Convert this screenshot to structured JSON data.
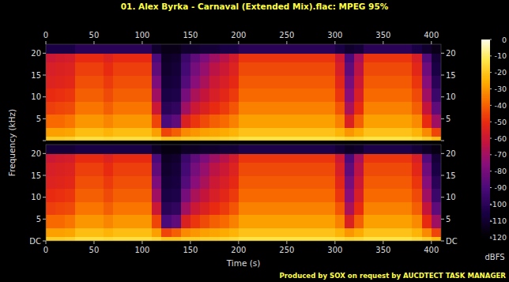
{
  "chart_data": {
    "type": "heatmap",
    "title": "01. Alex Byrka - Carnaval (Extended Mix).flac: MPEG 95%",
    "x_label": "Time (s)",
    "y_label": "Frequency (kHz)",
    "xlim": [
      0,
      410
    ],
    "xticks": [
      0,
      50,
      100,
      150,
      200,
      250,
      300,
      350,
      400
    ],
    "ylim": [
      0,
      22.05
    ],
    "yticks": [
      {
        "value": 0,
        "label": "DC"
      },
      5,
      10,
      15,
      20
    ],
    "x_bins": [
      0,
      10,
      20,
      30,
      40,
      50,
      60,
      70,
      80,
      90,
      100,
      110,
      120,
      130,
      140,
      150,
      160,
      170,
      180,
      190,
      200,
      210,
      220,
      230,
      240,
      250,
      260,
      270,
      280,
      290,
      300,
      310,
      320,
      330,
      340,
      350,
      360,
      370,
      380,
      390,
      400,
      410
    ],
    "y_bins": [
      0,
      1,
      3,
      6,
      9,
      12,
      15,
      18,
      20,
      22.05
    ],
    "channels": [
      {
        "cells": [
          [
            -18,
            -28,
            -38,
            -46,
            -50,
            -54,
            -56,
            -60,
            -105
          ],
          [
            -18,
            -28,
            -38,
            -45,
            -49,
            -53,
            -55,
            -58,
            -105
          ],
          [
            -17,
            -27,
            -36,
            -44,
            -48,
            -52,
            -54,
            -57,
            -105
          ],
          [
            -14,
            -22,
            -30,
            -36,
            -40,
            -43,
            -46,
            -50,
            -100
          ],
          [
            -14,
            -22,
            -30,
            -36,
            -40,
            -43,
            -46,
            -50,
            -100
          ],
          [
            -14,
            -22,
            -30,
            -36,
            -40,
            -43,
            -46,
            -50,
            -100
          ],
          [
            -15,
            -24,
            -33,
            -40,
            -44,
            -47,
            -50,
            -54,
            -100
          ],
          [
            -14,
            -22,
            -30,
            -36,
            -40,
            -43,
            -46,
            -50,
            -100
          ],
          [
            -14,
            -22,
            -30,
            -36,
            -40,
            -43,
            -46,
            -50,
            -100
          ],
          [
            -14,
            -22,
            -30,
            -36,
            -40,
            -43,
            -46,
            -50,
            -100
          ],
          [
            -14,
            -22,
            -30,
            -36,
            -40,
            -43,
            -46,
            -50,
            -100
          ],
          [
            -16,
            -28,
            -45,
            -60,
            -70,
            -78,
            -85,
            -90,
            -110
          ],
          [
            -20,
            -45,
            -90,
            -100,
            -105,
            -108,
            -110,
            -112,
            -115
          ],
          [
            -20,
            -40,
            -85,
            -98,
            -104,
            -106,
            -108,
            -110,
            -115
          ],
          [
            -18,
            -32,
            -55,
            -70,
            -80,
            -88,
            -92,
            -95,
            -110
          ],
          [
            -18,
            -30,
            -48,
            -60,
            -68,
            -75,
            -80,
            -85,
            -110
          ],
          [
            -17,
            -28,
            -44,
            -55,
            -62,
            -68,
            -72,
            -78,
            -108
          ],
          [
            -17,
            -27,
            -40,
            -50,
            -56,
            -60,
            -64,
            -70,
            -108
          ],
          [
            -16,
            -26,
            -38,
            -47,
            -52,
            -56,
            -60,
            -65,
            -105
          ],
          [
            -15,
            -24,
            -34,
            -42,
            -47,
            -51,
            -54,
            -58,
            -105
          ],
          [
            -13,
            -21,
            -28,
            -34,
            -38,
            -41,
            -44,
            -48,
            -100
          ],
          [
            -13,
            -21,
            -28,
            -34,
            -38,
            -41,
            -44,
            -48,
            -100
          ],
          [
            -13,
            -21,
            -28,
            -34,
            -38,
            -41,
            -44,
            -48,
            -100
          ],
          [
            -13,
            -21,
            -28,
            -34,
            -38,
            -41,
            -44,
            -48,
            -100
          ],
          [
            -13,
            -21,
            -28,
            -34,
            -38,
            -41,
            -44,
            -48,
            -100
          ],
          [
            -13,
            -21,
            -28,
            -34,
            -38,
            -41,
            -44,
            -48,
            -100
          ],
          [
            -13,
            -21,
            -28,
            -34,
            -38,
            -41,
            -44,
            -48,
            -100
          ],
          [
            -13,
            -21,
            -28,
            -34,
            -38,
            -41,
            -44,
            -48,
            -100
          ],
          [
            -13,
            -21,
            -28,
            -34,
            -38,
            -41,
            -44,
            -48,
            -100
          ],
          [
            -13,
            -21,
            -28,
            -34,
            -38,
            -41,
            -44,
            -48,
            -100
          ],
          [
            -14,
            -24,
            -34,
            -42,
            -48,
            -52,
            -56,
            -60,
            -105
          ],
          [
            -16,
            -30,
            -55,
            -68,
            -75,
            -80,
            -85,
            -90,
            -110
          ],
          [
            -15,
            -26,
            -40,
            -50,
            -56,
            -60,
            -64,
            -68,
            -108
          ],
          [
            -13,
            -21,
            -28,
            -34,
            -38,
            -41,
            -44,
            -48,
            -100
          ],
          [
            -13,
            -21,
            -28,
            -34,
            -38,
            -41,
            -44,
            -48,
            -100
          ],
          [
            -13,
            -21,
            -28,
            -34,
            -38,
            -41,
            -44,
            -48,
            -100
          ],
          [
            -13,
            -21,
            -28,
            -34,
            -38,
            -41,
            -44,
            -48,
            -100
          ],
          [
            -13,
            -21,
            -28,
            -34,
            -38,
            -41,
            -44,
            -48,
            -100
          ],
          [
            -15,
            -24,
            -32,
            -40,
            -44,
            -48,
            -52,
            -56,
            -105
          ],
          [
            -18,
            -32,
            -50,
            -62,
            -70,
            -76,
            -82,
            -88,
            -110
          ],
          [
            -22,
            -45,
            -70,
            -85,
            -95,
            -100,
            -105,
            -108,
            -115
          ]
        ]
      },
      {
        "cells": [
          [
            -18,
            -28,
            -38,
            -46,
            -50,
            -54,
            -56,
            -60,
            -108
          ],
          [
            -18,
            -28,
            -38,
            -45,
            -49,
            -53,
            -55,
            -58,
            -108
          ],
          [
            -17,
            -27,
            -36,
            -44,
            -48,
            -52,
            -54,
            -57,
            -108
          ],
          [
            -14,
            -22,
            -30,
            -36,
            -40,
            -43,
            -46,
            -50,
            -105
          ],
          [
            -14,
            -22,
            -30,
            -36,
            -40,
            -43,
            -46,
            -50,
            -105
          ],
          [
            -14,
            -22,
            -30,
            -36,
            -40,
            -43,
            -46,
            -50,
            -105
          ],
          [
            -15,
            -24,
            -33,
            -40,
            -44,
            -47,
            -50,
            -54,
            -105
          ],
          [
            -14,
            -22,
            -30,
            -36,
            -40,
            -43,
            -46,
            -50,
            -105
          ],
          [
            -14,
            -22,
            -30,
            -36,
            -40,
            -43,
            -46,
            -50,
            -105
          ],
          [
            -14,
            -22,
            -30,
            -36,
            -40,
            -43,
            -46,
            -50,
            -105
          ],
          [
            -14,
            -22,
            -30,
            -36,
            -40,
            -43,
            -46,
            -50,
            -105
          ],
          [
            -16,
            -28,
            -45,
            -60,
            -70,
            -78,
            -85,
            -90,
            -112
          ],
          [
            -20,
            -45,
            -90,
            -100,
            -105,
            -108,
            -110,
            -112,
            -116
          ],
          [
            -20,
            -40,
            -85,
            -98,
            -104,
            -106,
            -108,
            -110,
            -116
          ],
          [
            -18,
            -32,
            -55,
            -70,
            -80,
            -88,
            -92,
            -95,
            -112
          ],
          [
            -18,
            -30,
            -48,
            -60,
            -68,
            -75,
            -80,
            -85,
            -112
          ],
          [
            -17,
            -28,
            -44,
            -55,
            -62,
            -68,
            -72,
            -78,
            -110
          ],
          [
            -17,
            -27,
            -40,
            -50,
            -56,
            -60,
            -64,
            -70,
            -110
          ],
          [
            -16,
            -26,
            -38,
            -47,
            -52,
            -56,
            -60,
            -65,
            -108
          ],
          [
            -15,
            -24,
            -34,
            -42,
            -47,
            -51,
            -54,
            -58,
            -108
          ],
          [
            -13,
            -21,
            -28,
            -34,
            -38,
            -41,
            -44,
            -48,
            -104
          ],
          [
            -13,
            -21,
            -28,
            -34,
            -38,
            -41,
            -44,
            -48,
            -104
          ],
          [
            -13,
            -21,
            -28,
            -34,
            -38,
            -41,
            -44,
            -48,
            -104
          ],
          [
            -13,
            -21,
            -28,
            -34,
            -38,
            -41,
            -44,
            -48,
            -104
          ],
          [
            -13,
            -21,
            -28,
            -34,
            -38,
            -41,
            -44,
            -48,
            -104
          ],
          [
            -13,
            -21,
            -28,
            -34,
            -38,
            -41,
            -44,
            -48,
            -104
          ],
          [
            -13,
            -21,
            -28,
            -34,
            -38,
            -41,
            -44,
            -48,
            -104
          ],
          [
            -13,
            -21,
            -28,
            -34,
            -38,
            -41,
            -44,
            -48,
            -104
          ],
          [
            -13,
            -21,
            -28,
            -34,
            -38,
            -41,
            -44,
            -48,
            -104
          ],
          [
            -13,
            -21,
            -28,
            -34,
            -38,
            -41,
            -44,
            -48,
            -104
          ],
          [
            -14,
            -24,
            -34,
            -42,
            -48,
            -52,
            -56,
            -60,
            -108
          ],
          [
            -16,
            -30,
            -55,
            -68,
            -75,
            -80,
            -85,
            -90,
            -112
          ],
          [
            -15,
            -26,
            -40,
            -50,
            -56,
            -60,
            -64,
            -68,
            -110
          ],
          [
            -13,
            -21,
            -28,
            -34,
            -38,
            -41,
            -44,
            -48,
            -104
          ],
          [
            -13,
            -21,
            -28,
            -34,
            -38,
            -41,
            -44,
            -48,
            -104
          ],
          [
            -13,
            -21,
            -28,
            -34,
            -38,
            -41,
            -44,
            -48,
            -104
          ],
          [
            -13,
            -21,
            -28,
            -34,
            -38,
            -41,
            -44,
            -48,
            -104
          ],
          [
            -13,
            -21,
            -28,
            -34,
            -38,
            -41,
            -44,
            -48,
            -104
          ],
          [
            -15,
            -24,
            -32,
            -40,
            -44,
            -48,
            -52,
            -56,
            -108
          ],
          [
            -18,
            -32,
            -50,
            -62,
            -70,
            -76,
            -82,
            -88,
            -112
          ],
          [
            -22,
            -45,
            -70,
            -85,
            -95,
            -100,
            -105,
            -108,
            -116
          ]
        ]
      }
    ],
    "colorbar": {
      "range": [
        -120,
        0
      ],
      "ticks": [
        0,
        -10,
        -20,
        -30,
        -40,
        -50,
        -60,
        -70,
        -80,
        -90,
        -100,
        -110,
        -120
      ],
      "label": "dBFS"
    },
    "footer": "Produced by SOX on request by AUCDTECT TASK MANAGER"
  }
}
